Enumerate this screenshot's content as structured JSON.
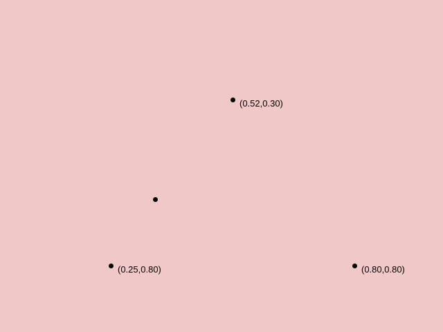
{
  "canvas": {
    "background_color": "#f0c8c8",
    "point_color": "#000000"
  },
  "points": {
    "a": {
      "label": "(0.52,0.30)"
    },
    "b": {
      "label": "(0.25,0.80)"
    },
    "c": {
      "label": "(0.80,0.80)"
    },
    "d": {
      "label": ""
    }
  }
}
